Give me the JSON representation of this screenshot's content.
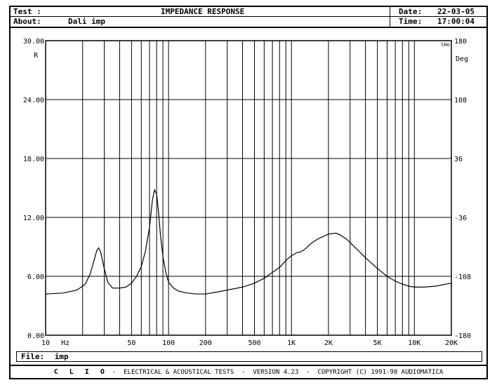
{
  "header": {
    "test_label": "Test :",
    "title": "IMPEDANCE RESPONSE",
    "date_label": "Date:",
    "date_value": "22-03-05",
    "about_label": "About:",
    "about_value": "Dali imp",
    "time_label": "Time:",
    "time_value": "17:00:04"
  },
  "file": {
    "label": "File:",
    "value": "imp"
  },
  "footer": {
    "brand": "C L I O",
    "text": "-  ELECTRICAL & ACOUSTICAL TESTS  -  VERSION 4.23  -  COPYRIGHT (C) 1991-98 AUDIOMATICA"
  },
  "chart_data": {
    "type": "line",
    "title": "IMPEDANCE RESPONSE",
    "xscale": "log",
    "xlim": [
      10,
      20000
    ],
    "ylim": [
      0,
      30
    ],
    "y2lim": [
      -180,
      180
    ],
    "xlabel": "Hz",
    "ylabel": "R",
    "y2label": "Deg",
    "corner_label": "CHo",
    "x_tick_labels": [
      {
        "x": 10,
        "label": "10"
      },
      {
        "x": 50,
        "label": "50"
      },
      {
        "x": 100,
        "label": "100"
      },
      {
        "x": 200,
        "label": "200"
      },
      {
        "x": 500,
        "label": "500"
      },
      {
        "x": 1000,
        "label": "1K"
      },
      {
        "x": 2000,
        "label": "2K"
      },
      {
        "x": 5000,
        "label": "5K"
      },
      {
        "x": 10000,
        "label": "10K"
      },
      {
        "x": 20000,
        "label": "20K"
      }
    ],
    "y_ticks": [
      "0.00",
      "6.00",
      "12.00",
      "18.00",
      "24.00",
      "30.00"
    ],
    "y2_ticks": [
      "-180",
      "-108",
      "-36",
      "36",
      "108",
      "180"
    ],
    "grid": true,
    "series": [
      {
        "x": [
          10,
          14,
          18,
          21,
          23,
          25,
          26,
          27,
          28,
          30,
          32,
          35,
          40,
          45,
          50,
          55,
          60,
          65,
          70,
          74,
          77,
          80,
          83,
          86,
          90,
          95,
          100,
          110,
          120,
          140,
          170,
          200,
          250,
          300,
          400,
          500,
          600,
          700,
          800,
          900,
          1000,
          1100,
          1200,
          1300,
          1400,
          1500,
          1700,
          2000,
          2300,
          2500,
          2800,
          3200,
          4000,
          5000,
          6000,
          7000,
          8000,
          9000,
          10000,
          12000,
          15000,
          18000,
          20000
        ],
        "y": [
          4.2,
          4.3,
          4.6,
          5.2,
          6.2,
          7.8,
          8.6,
          8.9,
          8.5,
          6.8,
          5.4,
          4.8,
          4.8,
          4.9,
          5.3,
          6.0,
          7.0,
          8.6,
          11.0,
          13.8,
          14.8,
          14.4,
          12.5,
          10.2,
          8.0,
          6.4,
          5.4,
          4.8,
          4.5,
          4.3,
          4.2,
          4.2,
          4.4,
          4.6,
          4.9,
          5.3,
          5.8,
          6.4,
          6.9,
          7.6,
          8.1,
          8.4,
          8.5,
          8.8,
          9.2,
          9.5,
          9.9,
          10.3,
          10.4,
          10.2,
          9.8,
          9.1,
          7.9,
          6.8,
          6.0,
          5.5,
          5.2,
          5.0,
          4.9,
          4.9,
          5.0,
          5.2,
          5.3
        ]
      }
    ]
  }
}
